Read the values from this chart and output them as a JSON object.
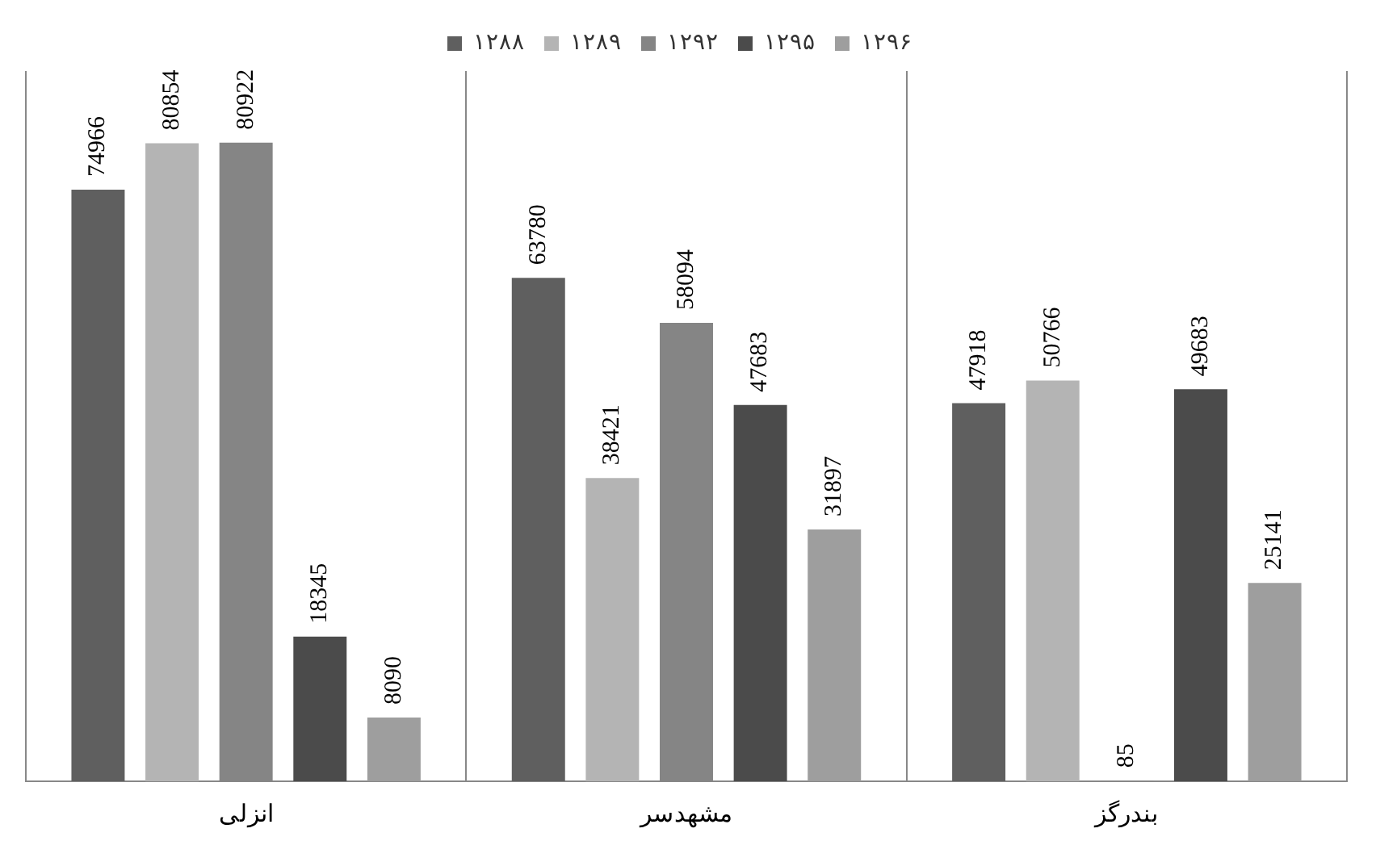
{
  "chart_data": {
    "type": "bar",
    "categories": [
      "انزلی",
      "مشهدسر",
      "بندرگز"
    ],
    "series": [
      {
        "name": "۱۲۸۸",
        "color": "#5f5f5f",
        "values": [
          74966,
          63780,
          47918
        ]
      },
      {
        "name": "۱۲۸۹",
        "color": "#b4b4b4",
        "values": [
          80854,
          38421,
          50766
        ]
      },
      {
        "name": "۱۲۹۲",
        "color": "#858585",
        "values": [
          80922,
          58094,
          85
        ]
      },
      {
        "name": "۱۲۹۵",
        "color": "#4b4b4b",
        "values": [
          18345,
          47683,
          49683
        ]
      },
      {
        "name": "۱۲۹۶",
        "color": "#9e9e9e",
        "values": [
          8090,
          31897,
          25141
        ]
      }
    ],
    "data_labels": true,
    "grid": "x",
    "legend": "top"
  }
}
